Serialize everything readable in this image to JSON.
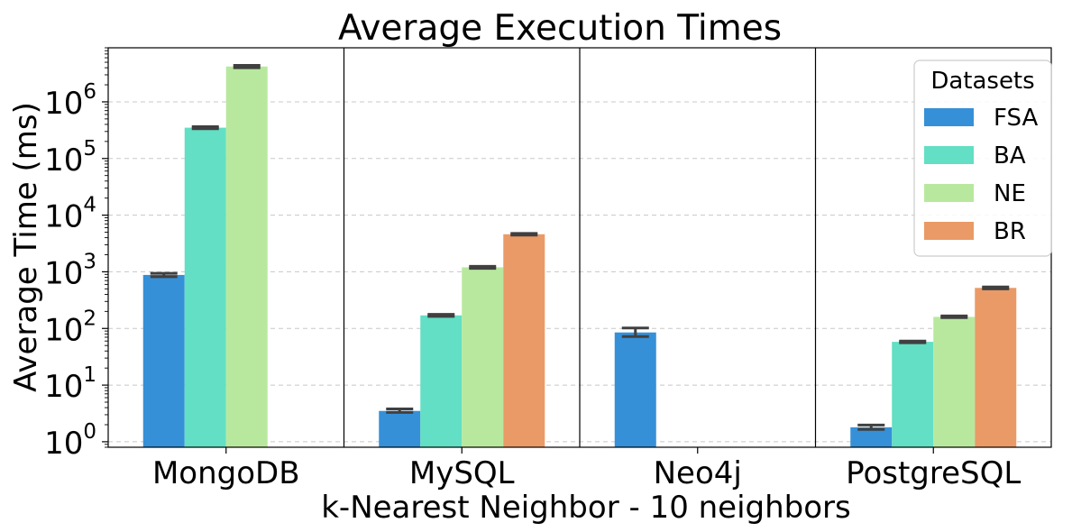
{
  "chart_data": {
    "type": "bar",
    "title": "Average Execution Times",
    "xlabel": "k-Nearest Neighbor - 10 neighbors",
    "ylabel": "Average Time (ms)",
    "yscale": "log",
    "ylim": [
      0.8,
      9000000
    ],
    "yticks": [
      1,
      10,
      100,
      1000,
      10000,
      100000,
      1000000
    ],
    "ytick_labels": [
      {
        "base": "10",
        "exp": "0"
      },
      {
        "base": "10",
        "exp": "1"
      },
      {
        "base": "10",
        "exp": "2"
      },
      {
        "base": "10",
        "exp": "3"
      },
      {
        "base": "10",
        "exp": "4"
      },
      {
        "base": "10",
        "exp": "5"
      },
      {
        "base": "10",
        "exp": "6"
      }
    ],
    "grid": true,
    "categories": [
      "MongoDB",
      "MySQL",
      "Neo4j",
      "PostgreSQL"
    ],
    "legend": {
      "title": "Datasets",
      "placement": "top-right"
    },
    "series": [
      {
        "name": "FSA",
        "color": "#3590d8",
        "values": [
          880,
          3.5,
          85,
          1.8
        ],
        "err_low": [
          820,
          3.3,
          72,
          1.65
        ],
        "err_high": [
          940,
          3.8,
          102,
          1.97
        ]
      },
      {
        "name": "BA",
        "color": "#62dfc4",
        "values": [
          350000,
          170,
          null,
          58
        ],
        "err_low": [
          335000,
          163,
          null,
          56
        ],
        "err_high": [
          365000,
          177,
          null,
          60
        ]
      },
      {
        "name": "NE",
        "color": "#b8e89e",
        "values": [
          4200000,
          1200,
          null,
          160
        ],
        "err_low": [
          4000000,
          1150,
          null,
          155
        ],
        "err_high": [
          4400000,
          1250,
          null,
          166
        ]
      },
      {
        "name": "BR",
        "color": "#ea9a66",
        "values": [
          null,
          4600,
          null,
          520
        ],
        "err_low": [
          null,
          4450,
          null,
          500
        ],
        "err_high": [
          null,
          4750,
          null,
          540
        ]
      }
    ]
  }
}
